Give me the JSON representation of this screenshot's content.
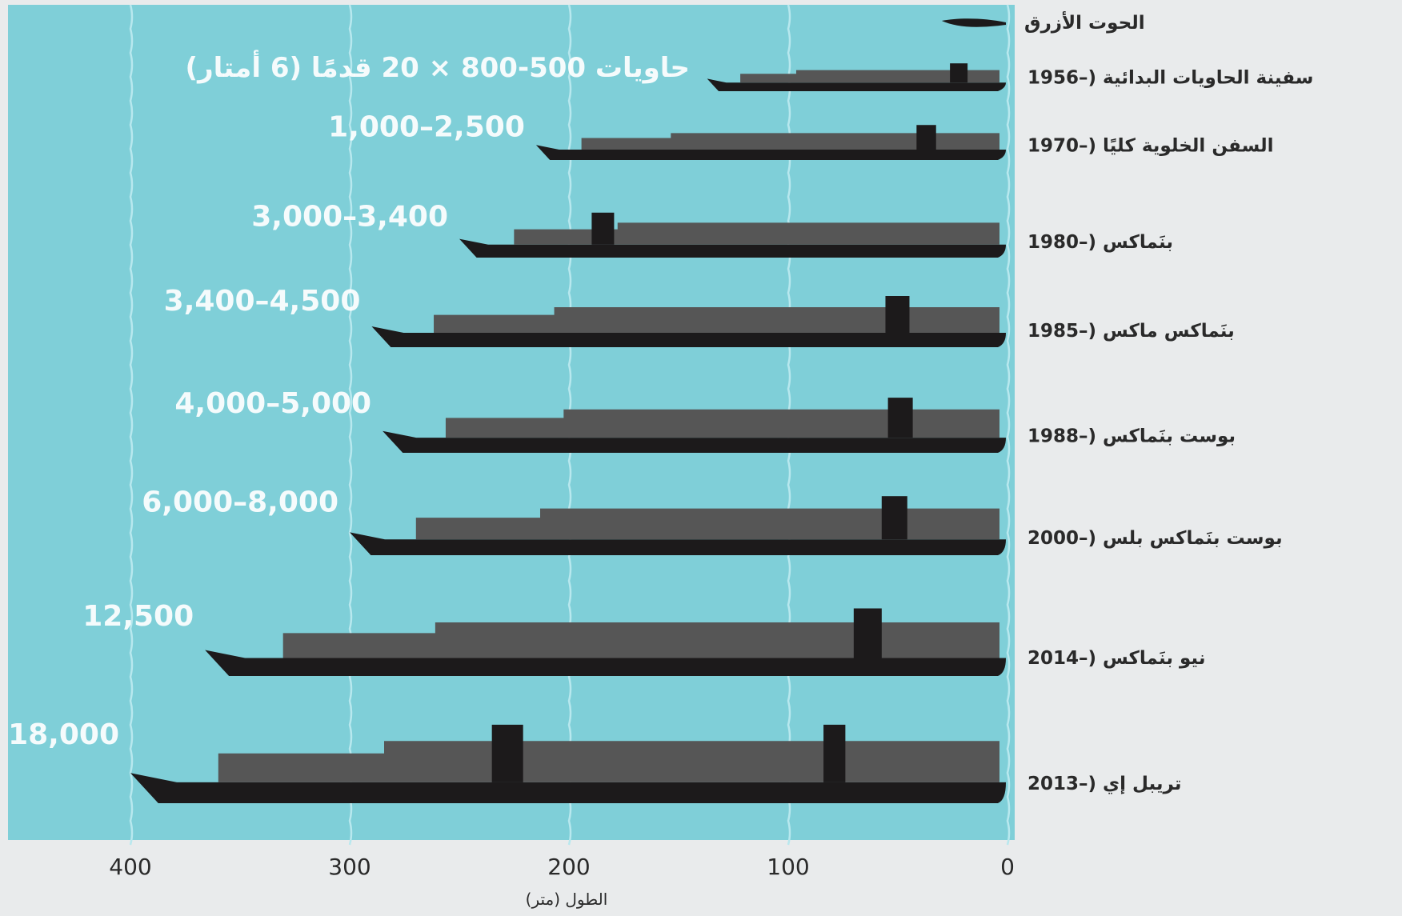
{
  "chart_data": {
    "type": "bar",
    "xlabel": "الطول (متر)",
    "xticks": [
      "400",
      "300",
      "200",
      "100",
      "0"
    ],
    "xlim": [
      0,
      400
    ],
    "x_direction": "right-to-left",
    "grid": true,
    "reference": {
      "name": "الحوت الأزرق",
      "length_m": 30
    },
    "ships": [
      {
        "name": "سفينة الحاويات البدائية (–1956",
        "length_m": 137,
        "capacity_label": "حاويات 500-800 × 20 قدمًا (6 أمتار)"
      },
      {
        "name": "السفن الخلوية كليًا (–1970",
        "length_m": 215,
        "capacity_label": "1,000–2,500"
      },
      {
        "name": "بنَماكس (–1980",
        "length_m": 250,
        "capacity_label": "3,000–3,400"
      },
      {
        "name": "بنَماكس ماكس (–1985",
        "length_m": 290,
        "capacity_label": "3,400–4,500"
      },
      {
        "name": "بوست بنَماكس (–1988",
        "length_m": 285,
        "capacity_label": "4,000–5,000"
      },
      {
        "name": "بوست بنَماكس بلس (–2000",
        "length_m": 300,
        "capacity_label": "6,000–8,000"
      },
      {
        "name": "نيو بنَماكس (–2014",
        "length_m": 366,
        "capacity_label": "12,500"
      },
      {
        "name": "تريبل إي (–2013",
        "length_m": 400,
        "capacity_label": "18,000"
      }
    ]
  },
  "colors": {
    "sea": "#7fcfd8",
    "wave": "#b8e8ee",
    "hull": "#1c1a1b",
    "containers": "#565656",
    "label_light": "#ffffff",
    "label_dark": "#2a2a2a",
    "background": "#e9ebec"
  }
}
